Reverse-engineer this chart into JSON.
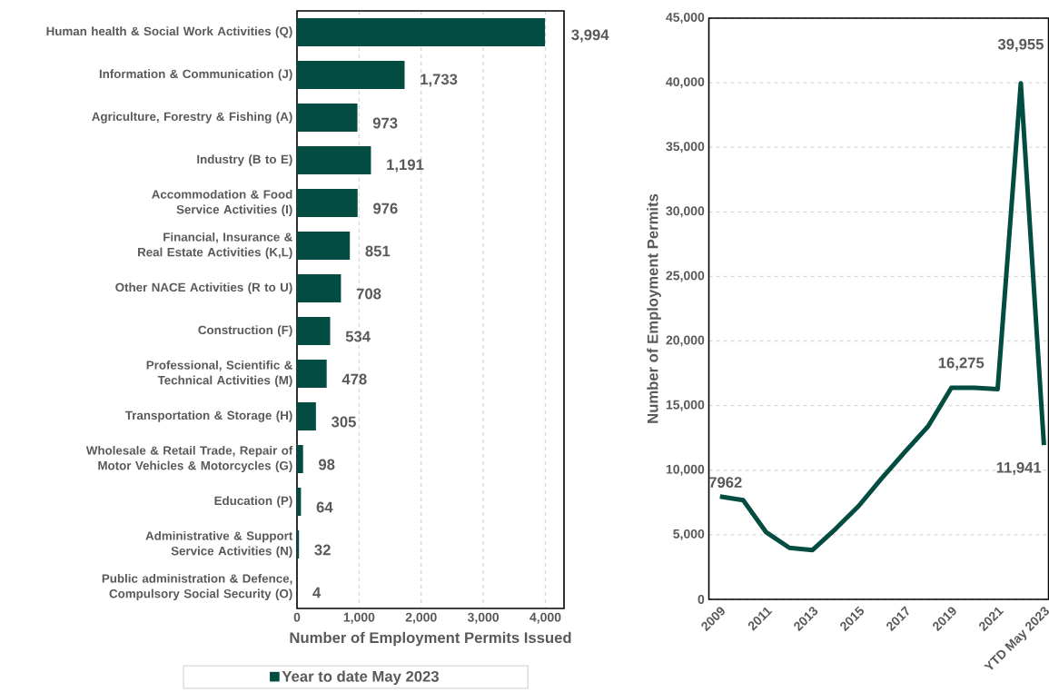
{
  "chart_data": [
    {
      "type": "bar",
      "orientation": "horizontal",
      "xlabel": "Number of Employment Permits Issued",
      "categories": [
        "Human health & Social Work Activities (Q)",
        "Information & Communication (J)",
        "Agriculture, Forestry & Fishing (A)",
        "Industry (B to E)",
        "Accommodation & Food Service Activities (I)",
        "Financial, Insurance & Real Estate Activities (K,L)",
        "Other NACE Activities (R to U)",
        "Construction (F)",
        "Professional, Scientific & Technical Activities (M)",
        "Transportation & Storage (H)",
        "Wholesale & Retail Trade, Repair of Motor Vehicles & Motorcycles (G)",
        "Education (P)",
        "Administrative & Support Service Activities (N)",
        "Public administration & Defence, Compulsory Social Security (O)"
      ],
      "series": [
        {
          "name": "Year to date May 2023",
          "color": "#034c42",
          "values": [
            3994,
            1733,
            973,
            1191,
            976,
            851,
            708,
            534,
            478,
            305,
            98,
            64,
            32,
            4
          ],
          "value_labels": [
            "3,994",
            "1,733",
            "973",
            "1,191",
            "976",
            "851",
            "708",
            "534",
            "478",
            "305",
            "98",
            "64",
            "32",
            "4"
          ]
        }
      ],
      "xlim": [
        0,
        4300
      ],
      "xticks": [
        0,
        {
          "value": 1000,
          "label": "1,000"
        },
        {
          "value": 2000,
          "label": "2,000"
        },
        {
          "value": 3000,
          "label": "3,000"
        },
        {
          "value": 4000,
          "label": "4,000"
        }
      ],
      "grid": "x",
      "legend": "bottom"
    },
    {
      "type": "line",
      "ylabel": "Number of Employment Permits",
      "categories": [
        "2009",
        null,
        "2011",
        null,
        "2013",
        null,
        "2015",
        null,
        "2017",
        null,
        "2019",
        null,
        "2021",
        null,
        "YTD May 2023"
      ],
      "series": [
        {
          "color": "#034c42",
          "values": [
            7962,
            7680,
            5190,
            3990,
            3820,
            5460,
            7240,
            9390,
            11430,
            13410,
            16380,
            16380,
            16275,
            39955,
            11941
          ],
          "value_labels": [
            "7962",
            null,
            null,
            null,
            null,
            null,
            null,
            null,
            null,
            null,
            null,
            null,
            "16,275",
            "39,955",
            "11,941"
          ]
        }
      ],
      "ylim": [
        0,
        45000
      ],
      "yticks": [
        0,
        {
          "value": 5000,
          "label": "5,000"
        },
        {
          "value": 10000,
          "label": "10,000"
        },
        {
          "value": 15000,
          "label": "15,000"
        },
        {
          "value": 20000,
          "label": "20,000"
        },
        {
          "value": 25000,
          "label": "25,000"
        },
        {
          "value": 30000,
          "label": "30,000"
        },
        {
          "value": 35000,
          "label": "35,000"
        },
        {
          "value": 40000,
          "label": "40,000"
        },
        {
          "value": 45000,
          "label": "45,000"
        }
      ],
      "grid": "y",
      "marker": "none",
      "line_style": "solid"
    }
  ]
}
